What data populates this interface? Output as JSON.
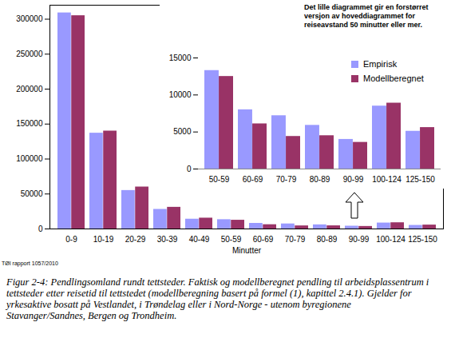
{
  "chart_data": [
    {
      "type": "bar",
      "xlabel": "Minutter",
      "categories": [
        "0-9",
        "10-19",
        "20-29",
        "30-39",
        "40-49",
        "50-59",
        "60-69",
        "70-79",
        "80-89",
        "90-99",
        "100-124",
        "125-150"
      ],
      "series": [
        {
          "name": "Empirisk",
          "color": "#9999ff",
          "values": [
            309000,
            137000,
            55000,
            28000,
            14000,
            13300,
            8000,
            7200,
            5900,
            4000,
            8500,
            5100
          ]
        },
        {
          "name": "Modellberegnet",
          "color": "#993366",
          "values": [
            305000,
            140000,
            60000,
            31000,
            15500,
            12500,
            6100,
            4400,
            4500,
            3600,
            8900,
            5600
          ]
        }
      ],
      "ylim": [
        0,
        320000
      ],
      "yticks": [
        0,
        50000,
        100000,
        150000,
        200000,
        250000,
        300000
      ],
      "grid": false,
      "source": "TØI rapport 1057/2010",
      "caption": "Figur 2-4: Pendlingsomland rundt tettsteder. Faktisk og modellberegnet pendling til arbeidsplassentrum i tettsteder etter reisetid til tettstedet (modellberegning basert på formel (1), kapittel 2.4.1). Gjelder for yrkesaktive bosatt på Vestlandet, i Trøndelag eller i Nord-Norge - utenom byregionene Stavanger/Sandnes, Bergen og Trondheim."
    },
    {
      "type": "bar",
      "annotations": [
        "Det lille diagrammet gir en forstørret versjon av hoveddiagrammet for reiseavstand 50 minutter eller mer."
      ],
      "categories": [
        "50-59",
        "60-69",
        "70-79",
        "80-89",
        "90-99",
        "100-124",
        "125-150"
      ],
      "series": [
        {
          "name": "Empirisk",
          "color": "#9999ff",
          "values": [
            13300,
            8000,
            7200,
            5900,
            4000,
            8500,
            5100
          ]
        },
        {
          "name": "Modellberegnet",
          "color": "#993366",
          "values": [
            12500,
            6100,
            4400,
            4500,
            3600,
            8900,
            5600
          ]
        }
      ],
      "ylim": [
        0,
        15000
      ],
      "yticks": [
        0,
        5000,
        10000,
        15000
      ],
      "grid": false,
      "legend": "top-right"
    }
  ]
}
